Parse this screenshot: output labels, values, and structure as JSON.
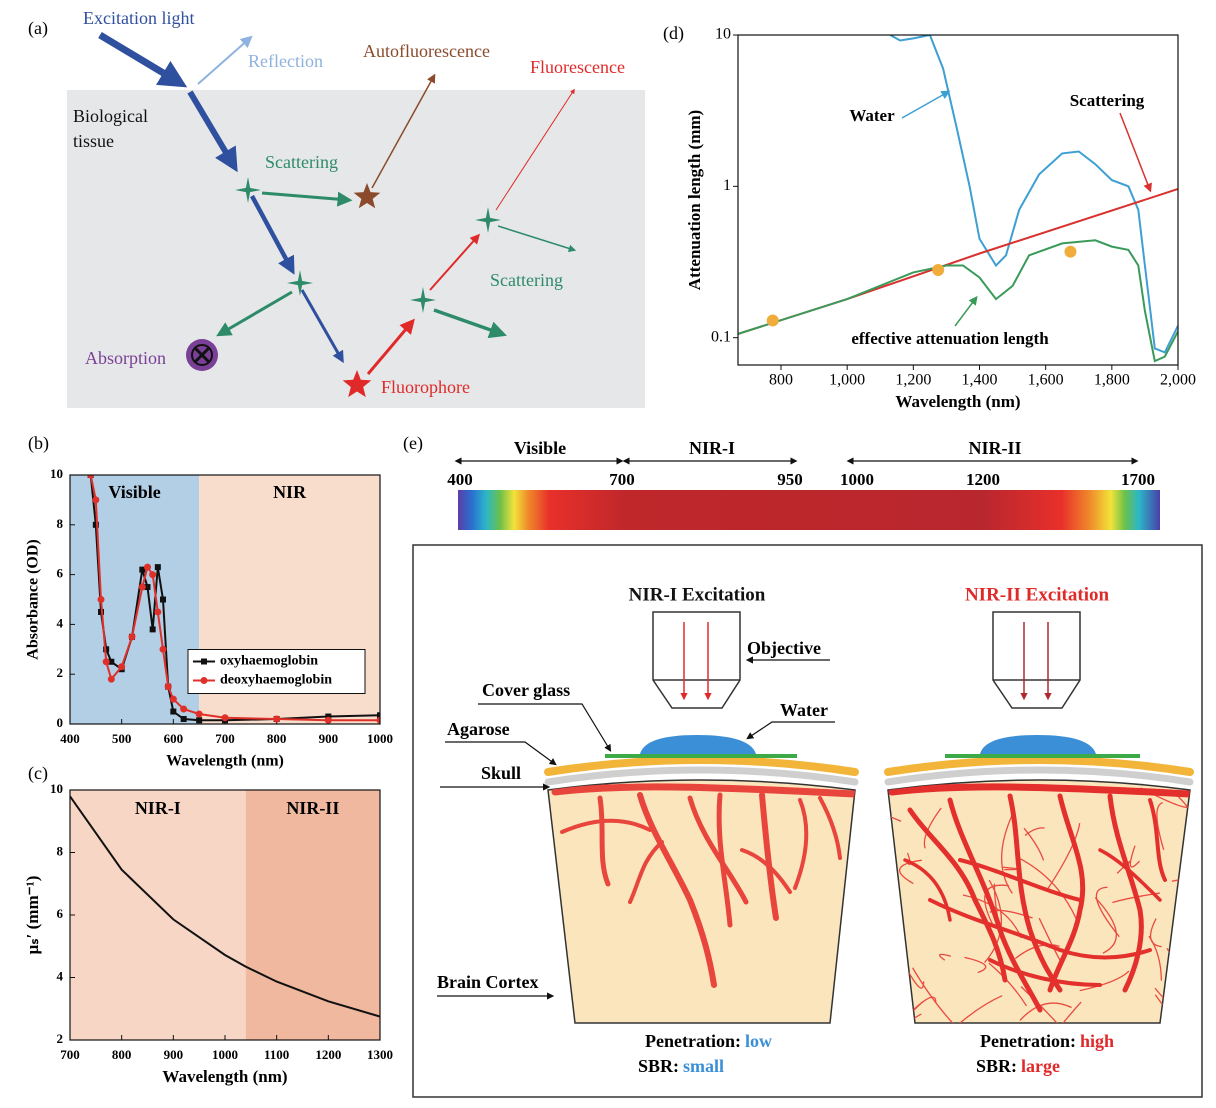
{
  "panel_labels": [
    "(a)",
    "(b)",
    "(c)",
    "(d)",
    "(e)"
  ],
  "diagram_a": {
    "excitation": "Excitation light",
    "reflection": "Reflection",
    "autofluorescence": "Autofluorescence",
    "fluorescence": "Fluorescence",
    "tissue": [
      "Biological",
      "tissue"
    ],
    "scattering_1": "Scattering",
    "scattering_2": "Scattering",
    "absorption": "Absorption",
    "fluorophore": "Fluorophore"
  },
  "chart_data": [
    {
      "type": "line",
      "xlabel": "Wavelength (nm)",
      "ylabel": "Absorbance (OD)",
      "xlim": [
        400,
        1000
      ],
      "ylim": [
        0,
        10
      ],
      "xticks": [
        400,
        500,
        600,
        700,
        800,
        900,
        1000
      ],
      "yticks": [
        0,
        2,
        4,
        6,
        8,
        10
      ],
      "regions": [
        {
          "label": "Visible",
          "from": 400,
          "to": 650,
          "color": "#b3cfe6"
        },
        {
          "label": "NIR",
          "from": 650,
          "to": 1000,
          "color": "#f8ddcd"
        }
      ],
      "legend": "center right",
      "x": [
        440,
        450,
        460,
        470,
        480,
        500,
        520,
        540,
        550,
        560,
        570,
        580,
        590,
        600,
        620,
        650,
        700,
        800,
        900,
        1000
      ],
      "series": [
        {
          "name": "oxyhaemoglobin",
          "color": "#111111",
          "marker": "square",
          "values": [
            10,
            8,
            4.5,
            3,
            2.5,
            2.2,
            3.5,
            6.2,
            5.5,
            3.8,
            6.3,
            5,
            1.5,
            0.5,
            0.2,
            0.15,
            0.15,
            0.2,
            0.3,
            0.35
          ]
        },
        {
          "name": "deoxyhaemoglobin",
          "color": "#e0302a",
          "marker": "circle",
          "values": [
            10,
            9,
            5,
            2.5,
            1.8,
            2.3,
            3.5,
            5.5,
            6.3,
            6,
            4.5,
            3,
            1.5,
            1,
            0.6,
            0.4,
            0.25,
            0.2,
            0.15,
            0.15
          ]
        }
      ]
    },
    {
      "type": "line",
      "xlabel": "Wavelength (nm)",
      "ylabel": "μₛ′ (mm⁻¹)",
      "xlim": [
        700,
        1300
      ],
      "ylim": [
        2,
        10
      ],
      "xticks": [
        700,
        800,
        900,
        1000,
        1100,
        1200,
        1300
      ],
      "yticks": [
        2,
        4,
        6,
        8,
        10
      ],
      "regions": [
        {
          "label": "NIR-I",
          "from": 700,
          "to": 1040,
          "color": "#f7d6c5"
        },
        {
          "label": "NIR-II",
          "from": 1040,
          "to": 1300,
          "color": "#f0b99f"
        }
      ],
      "x": [
        700,
        800,
        900,
        1000,
        1040,
        1100,
        1200,
        1300
      ],
      "series": [
        {
          "color": "#111111",
          "values": [
            9.8,
            7.45,
            5.86,
            4.72,
            4.35,
            3.87,
            3.24,
            2.75
          ]
        }
      ]
    },
    {
      "type": "line",
      "xlabel": "Wavelength (nm)",
      "ylabel": "Attenuation length (mm)",
      "log_y": true,
      "xlim": [
        670,
        2000
      ],
      "ylim": [
        0.066,
        10
      ],
      "xticks": [
        800,
        {
          "value": 1000,
          "label": "1,000"
        },
        {
          "value": 1200,
          "label": "1,200"
        },
        {
          "value": 1400,
          "label": "1,400"
        },
        {
          "value": 1600,
          "label": "1,600"
        },
        {
          "value": 1800,
          "label": "1,800"
        },
        {
          "value": 2000,
          "label": "2,000"
        }
      ],
      "yticks": [
        0.1,
        1,
        10
      ],
      "series": [
        {
          "name": "Water",
          "color": "#3d9fd3",
          "x": [
            1130,
            1160,
            1200,
            1250,
            1290,
            1330,
            1370,
            1400,
            1450,
            1480,
            1520,
            1580,
            1650,
            1700,
            1750,
            1800,
            1850,
            1880,
            1900,
            1930,
            1960,
            2000
          ],
          "values": [
            10,
            9.2,
            9.5,
            10,
            6,
            2.5,
            1,
            0.45,
            0.3,
            0.35,
            0.7,
            1.2,
            1.65,
            1.7,
            1.4,
            1.1,
            1.0,
            0.7,
            0.3,
            0.085,
            0.08,
            0.12
          ]
        },
        {
          "name": "Scattering",
          "color": "#d9322e",
          "x": [
            670,
            1000,
            1400,
            2000
          ],
          "values": [
            0.106,
            0.18,
            0.36,
            0.96
          ]
        },
        {
          "name": "effective attenuation length",
          "color": "#3a9a5a",
          "x": [
            670,
            1000,
            1200,
            1300,
            1350,
            1400,
            1450,
            1500,
            1550,
            1650,
            1750,
            1800,
            1850,
            1880,
            1900,
            1930,
            1960,
            2000
          ],
          "values": [
            0.106,
            0.18,
            0.27,
            0.3,
            0.3,
            0.25,
            0.18,
            0.22,
            0.35,
            0.42,
            0.44,
            0.4,
            0.38,
            0.3,
            0.15,
            0.07,
            0.075,
            0.11
          ]
        }
      ],
      "points": {
        "color": "#f0ad3c",
        "x": [
          775,
          1275,
          1675
        ],
        "values": [
          0.13,
          0.28,
          0.37
        ]
      }
    }
  ],
  "diagram_e": {
    "bands": [
      "Visible",
      "NIR-I",
      "NIR-II"
    ],
    "ticks": [
      400,
      700,
      950,
      1000,
      1200,
      1700
    ],
    "left_title": "NIR-I Excitation",
    "right_title": "NIR-II Excitation",
    "objective": "Objective",
    "cover_glass": "Cover glass",
    "water": "Water",
    "agarose": "Agarose",
    "skull": "Skull",
    "brain": "Brain Cortex",
    "left_result": {
      "penetration": "Penetration:",
      "penetration_value": "low",
      "sbr": "SBR:",
      "sbr_value": "small"
    },
    "right_result": {
      "penetration": "Penetration:",
      "penetration_value": "high",
      "sbr": "SBR:",
      "sbr_value": "large"
    }
  }
}
